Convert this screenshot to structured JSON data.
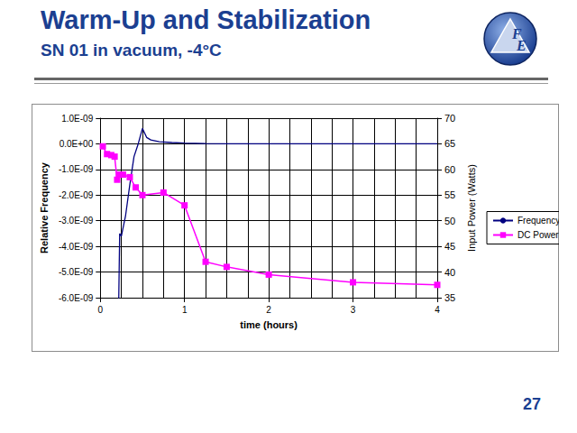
{
  "slide": {
    "title": "Warm-Up and Stabilization",
    "subtitle": "SN 01 in vacuum, -4°C",
    "page": "27",
    "logo": [
      "F",
      "E"
    ]
  },
  "chart_data": {
    "type": "line",
    "x_label": "time (hours)",
    "y_label": "Relative Frequency",
    "y2_label": "Input Power (Watts)",
    "xlim": [
      0,
      4
    ],
    "xticks": [
      0,
      1,
      2,
      3,
      4
    ],
    "ylim": [
      -6e-09,
      1e-09
    ],
    "yticks": [
      {
        "value": -6e-09,
        "label": "-6.0E-09"
      },
      {
        "value": -5e-09,
        "label": "-5.0E-09"
      },
      {
        "value": -4e-09,
        "label": "-4.0E-09"
      },
      {
        "value": -3e-09,
        "label": "-3.0E-09"
      },
      {
        "value": -2e-09,
        "label": "-2.0E-09"
      },
      {
        "value": -1e-09,
        "label": "-1.0E-09"
      },
      {
        "value": 0,
        "label": "0.0E+00"
      },
      {
        "value": 1e-09,
        "label": "1.0E-09"
      }
    ],
    "y2lim": [
      35,
      70
    ],
    "y2ticks": [
      35,
      40,
      45,
      50,
      55,
      60,
      65,
      70
    ],
    "grid": true,
    "legend": "right",
    "series": [
      {
        "name": "Frequency",
        "color": "#000080",
        "line_style": "solid",
        "marker": "none",
        "x": [
          0.215,
          0.23,
          0.25,
          0.3,
          0.35,
          0.4,
          0.45,
          0.5,
          0.55,
          0.6,
          0.7,
          0.85,
          1.0,
          1.25,
          1.5,
          2.0,
          3.0,
          4.0
        ],
        "values": [
          -7e-09,
          -3.5e-09,
          -3.6e-09,
          -2.8e-09,
          -1.6e-09,
          -5e-10,
          0.0,
          6e-10,
          2.5e-10,
          1.5e-10,
          8e-11,
          5e-11,
          3e-11,
          1e-11,
          0.0,
          0.0,
          0.0,
          0.0
        ]
      },
      {
        "name": "DC Power",
        "color": "#ff00ff",
        "line_style": "solid",
        "marker": "square",
        "axis": "y2",
        "x": [
          0.03,
          0.08,
          0.13,
          0.17,
          0.2,
          0.22,
          0.27,
          0.35,
          0.42,
          0.5,
          0.75,
          1.0,
          1.25,
          1.5,
          2.0,
          3.0,
          4.0
        ],
        "values": [
          64.5,
          63.0,
          62.8,
          62.5,
          58.0,
          59.0,
          59.0,
          58.5,
          56.5,
          55.0,
          55.5,
          53.0,
          42.0,
          41.0,
          39.5,
          38.0,
          37.5
        ]
      }
    ]
  }
}
